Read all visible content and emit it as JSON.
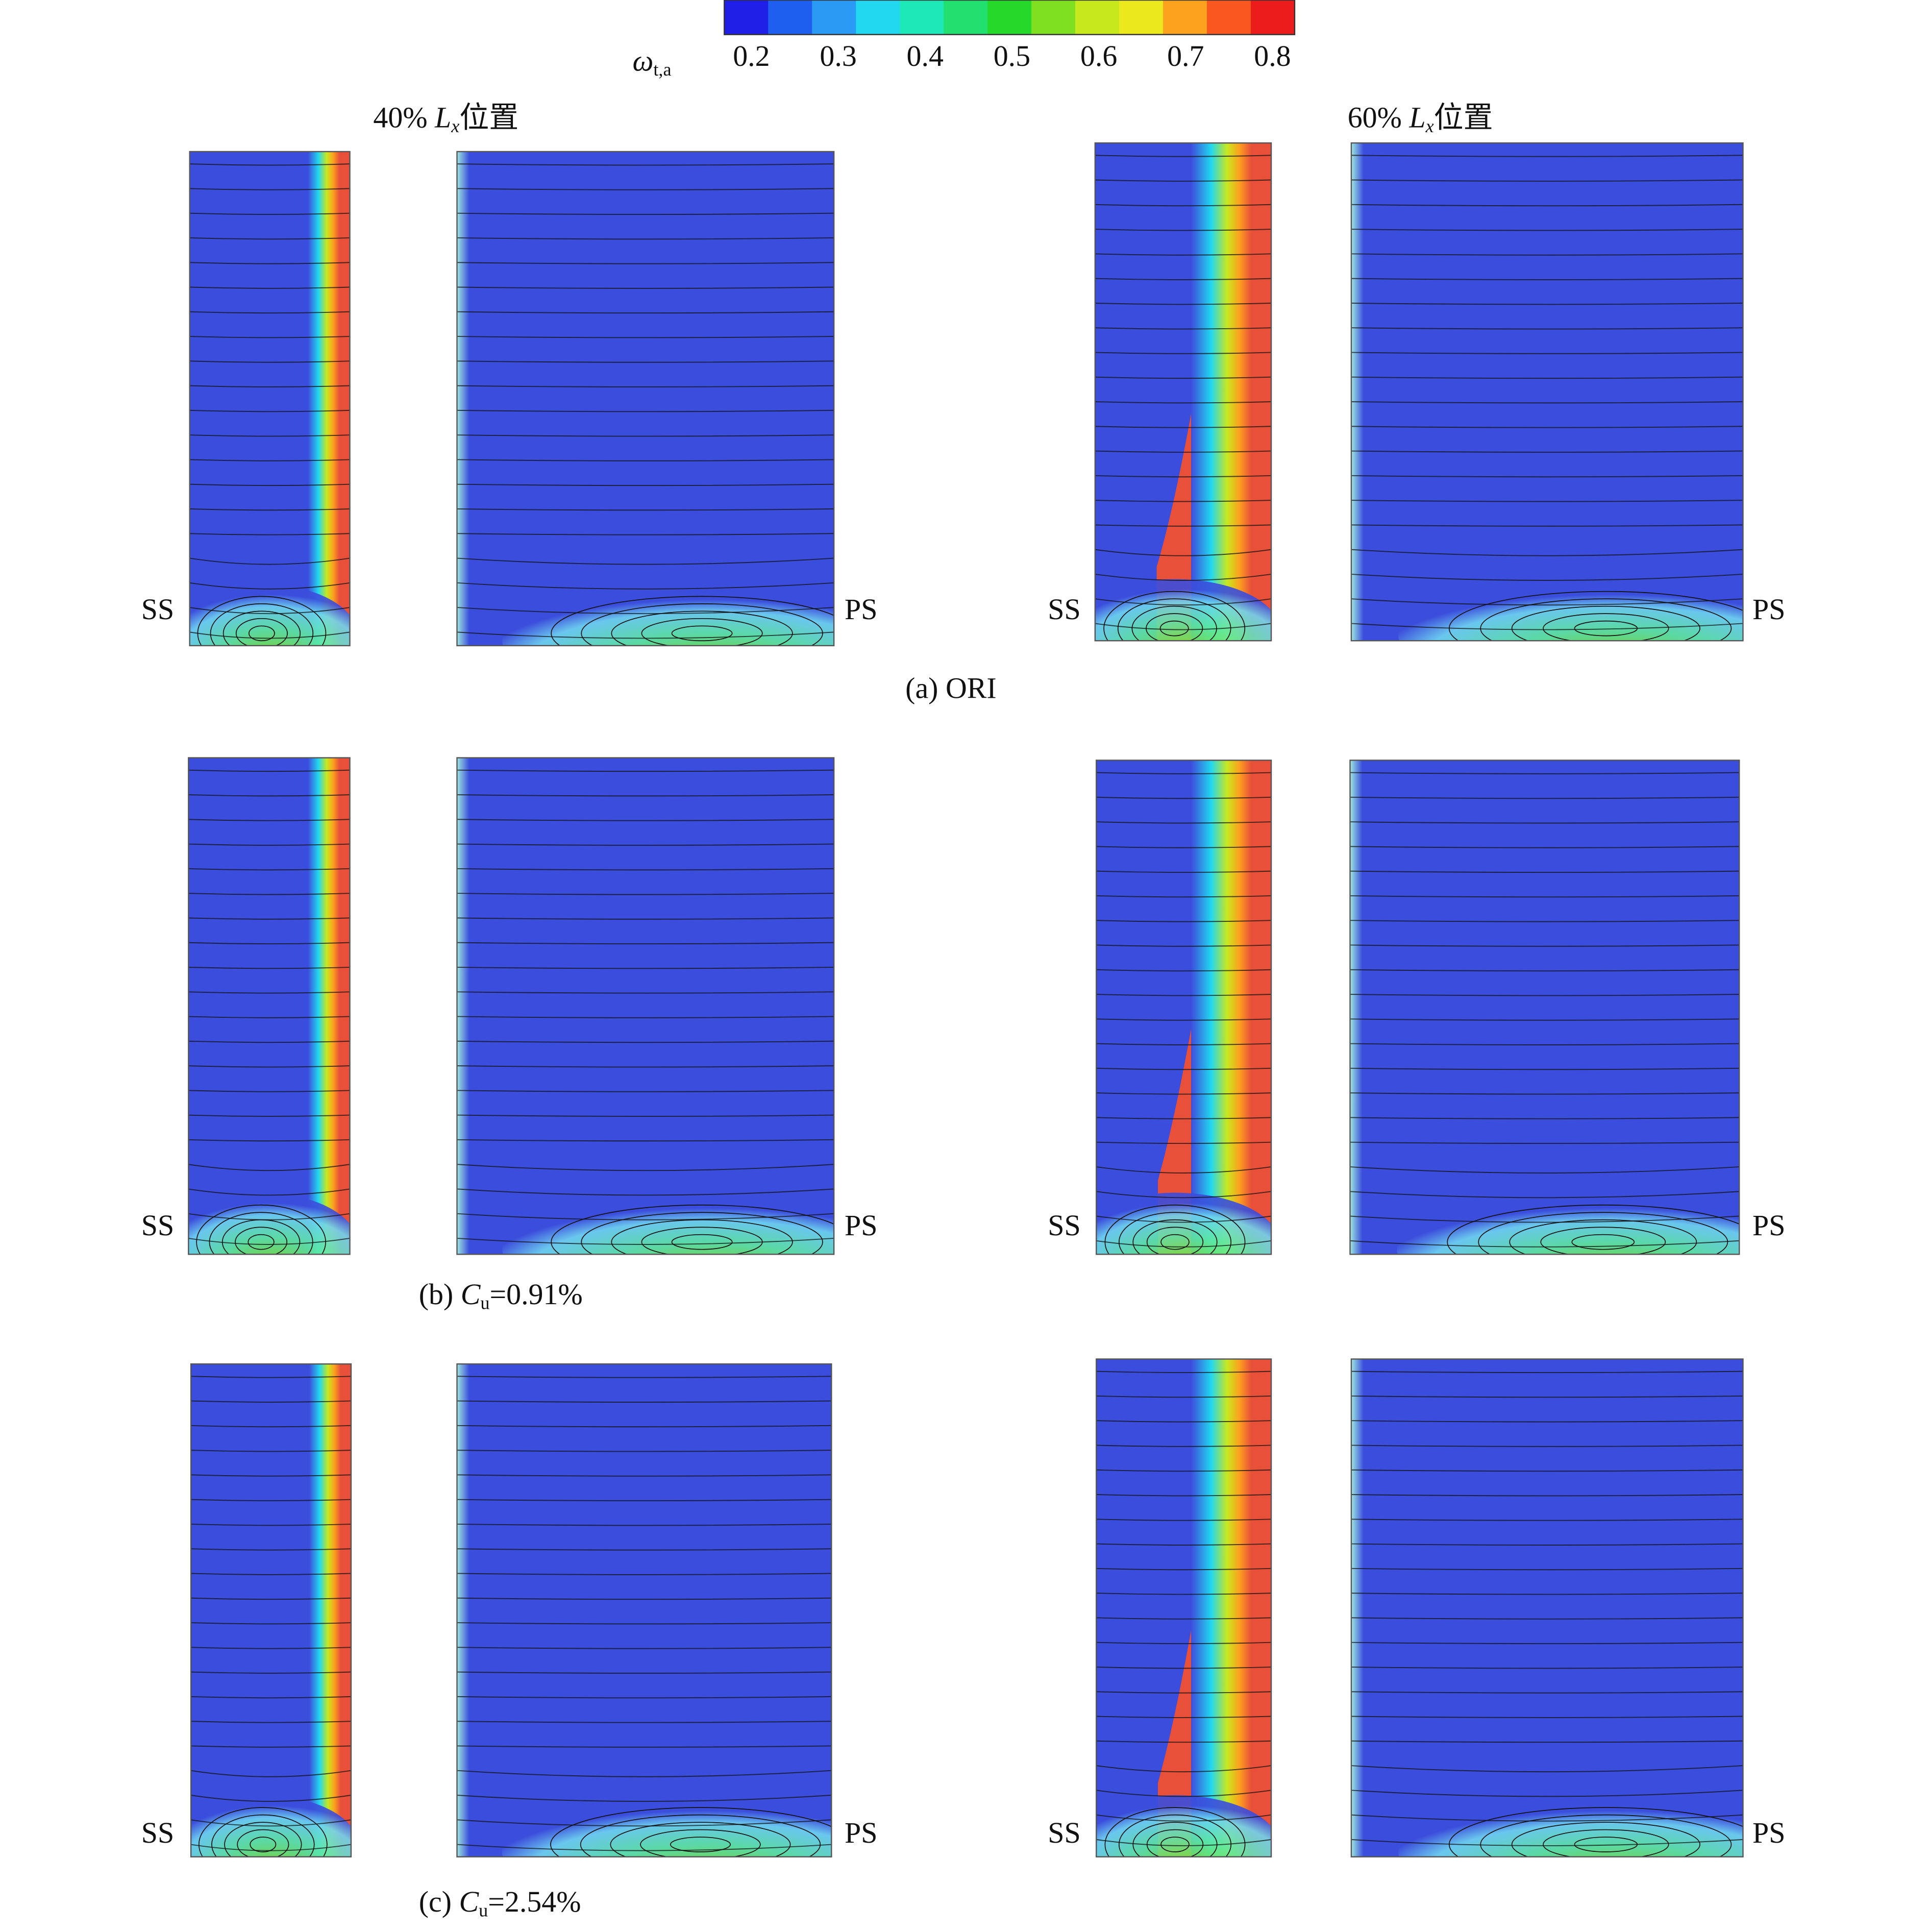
{
  "colorbar": {
    "symbol": "ω",
    "subscript": "t,a",
    "ticks": [
      "0.2",
      "0.3",
      "0.4",
      "0.5",
      "0.6",
      "0.7",
      "0.8"
    ],
    "colors": [
      "#1f1fe8",
      "#1f5ff0",
      "#2a9af5",
      "#22d8f0",
      "#1ee8b8",
      "#22e070",
      "#25d82a",
      "#7ee020",
      "#c8e81e",
      "#ece81e",
      "#fca21e",
      "#f85820",
      "#ec1c1c"
    ]
  },
  "columns": [
    {
      "prefix": "40% ",
      "var": "L",
      "sub": "x",
      "suffix": "位置"
    },
    {
      "prefix": "60% ",
      "var": "L",
      "sub": "x",
      "suffix": "位置"
    }
  ],
  "side_labels": {
    "left": "SS",
    "right": "PS"
  },
  "rows": [
    {
      "caption": "(a) ORI"
    },
    {
      "prefix": "(b) ",
      "var": "C",
      "sub": "u",
      "suffix": "=0.91%"
    },
    {
      "prefix": "(c) ",
      "var": "C",
      "sub": "u",
      "suffix": "=2.54%"
    }
  ]
}
